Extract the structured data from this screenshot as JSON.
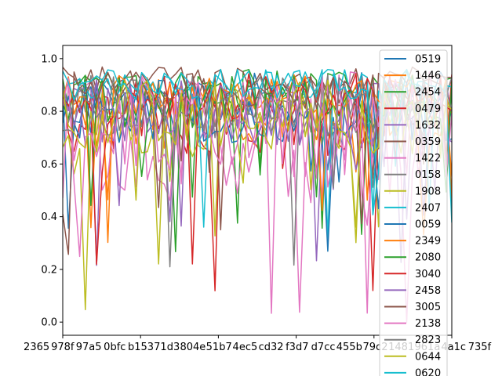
{
  "chart_data": {
    "type": "line",
    "title": "",
    "xlabel": "",
    "ylabel": "",
    "ylim": [
      -0.05,
      1.05
    ],
    "y_ticks": [
      "0.0",
      "0.2",
      "0.4",
      "0.6",
      "0.8",
      "1.0"
    ],
    "x_tick_labels": [
      "2365",
      "978f",
      "97a5",
      "0bfc",
      "b153",
      "71d3",
      "804e",
      "51b7",
      "4ec5",
      "cd32",
      "f3d7",
      "d7cc",
      "455b",
      "79c2",
      "1481",
      "961a",
      "4a1c",
      "735f"
    ],
    "grid": false,
    "legend_placement": "right",
    "series": [
      {
        "name": "0519",
        "color": "#1f77b4",
        "base": 0.85,
        "spread": 0.1
      },
      {
        "name": "1446",
        "color": "#ff7f0e",
        "base": 0.8,
        "spread": 0.14
      },
      {
        "name": "2454",
        "color": "#2ca02c",
        "base": 0.88,
        "spread": 0.08
      },
      {
        "name": "0479",
        "color": "#d62728",
        "base": 0.78,
        "spread": 0.16
      },
      {
        "name": "1632",
        "color": "#9467bd",
        "base": 0.8,
        "spread": 0.13
      },
      {
        "name": "0359",
        "color": "#8c564b",
        "base": 0.92,
        "spread": 0.05
      },
      {
        "name": "1422",
        "color": "#e377c2",
        "base": 0.7,
        "spread": 0.25
      },
      {
        "name": "0158",
        "color": "#7f7f7f",
        "base": 0.82,
        "spread": 0.12
      },
      {
        "name": "1908",
        "color": "#bcbd22",
        "base": 0.76,
        "spread": 0.15
      },
      {
        "name": "2407",
        "color": "#17becf",
        "base": 0.9,
        "spread": 0.06
      },
      {
        "name": "0059",
        "color": "#1f77b4",
        "base": 0.8,
        "spread": 0.12
      },
      {
        "name": "2349",
        "color": "#ff7f0e",
        "base": 0.86,
        "spread": 0.08
      },
      {
        "name": "2080",
        "color": "#2ca02c",
        "base": 0.84,
        "spread": 0.1
      },
      {
        "name": "3040",
        "color": "#d62728",
        "base": 0.85,
        "spread": 0.1
      },
      {
        "name": "2458",
        "color": "#9467bd",
        "base": 0.8,
        "spread": 0.13
      },
      {
        "name": "3005",
        "color": "#8c564b",
        "base": 0.88,
        "spread": 0.07
      },
      {
        "name": "2138",
        "color": "#e377c2",
        "base": 0.72,
        "spread": 0.22
      },
      {
        "name": "2823",
        "color": "#7f7f7f",
        "base": 0.83,
        "spread": 0.11
      },
      {
        "name": "0644",
        "color": "#bcbd22",
        "base": 0.78,
        "spread": 0.14
      },
      {
        "name": "0620",
        "color": "#17becf",
        "base": 0.9,
        "spread": 0.06
      }
    ]
  }
}
